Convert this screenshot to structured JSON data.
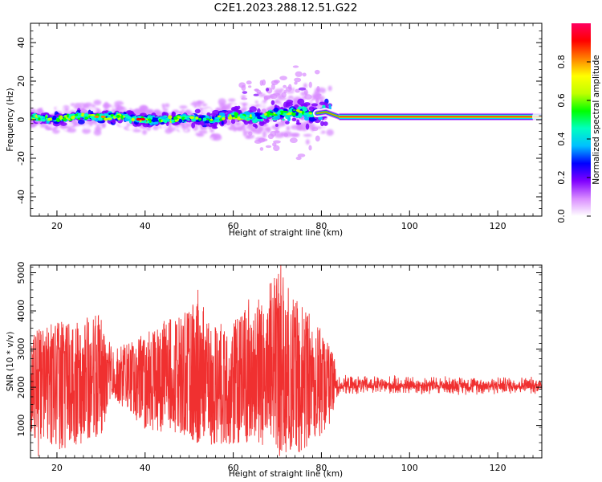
{
  "title": "C2E1.2023.288.12.51.G22",
  "chart_data": [
    {
      "type": "heatmap",
      "xlabel": "Height of straight line (km)",
      "ylabel": "Frequency (Hz)",
      "xlim": [
        14,
        130
      ],
      "ylim": [
        -50,
        50
      ],
      "xticks": [
        20,
        40,
        60,
        80,
        100,
        120
      ],
      "yticks": [
        -40,
        -20,
        0,
        20,
        40
      ],
      "grid": false,
      "colorbar": {
        "label": "Normalized spectral amplitude",
        "range": [
          0,
          1
        ],
        "ticks": [
          0.0,
          0.2,
          0.4,
          0.6,
          0.8
        ],
        "colormap": [
          "#ffffff",
          "#d98cff",
          "#8000ff",
          "#0000ff",
          "#00c0ff",
          "#00ffc0",
          "#00ff00",
          "#c0ff00",
          "#ffff00",
          "#ff8000",
          "#ff0000",
          "#ff0060"
        ]
      },
      "ridge": [
        {
          "x": 14,
          "freq": 1.5
        },
        {
          "x": 20,
          "freq": 0
        },
        {
          "x": 25,
          "freq": 2
        },
        {
          "x": 30,
          "freq": 1
        },
        {
          "x": 35,
          "freq": 2
        },
        {
          "x": 38,
          "freq": 0
        },
        {
          "x": 45,
          "freq": 0
        },
        {
          "x": 50,
          "freq": 1
        },
        {
          "x": 55,
          "freq": 0
        },
        {
          "x": 60,
          "freq": 2
        },
        {
          "x": 65,
          "freq": 1
        },
        {
          "x": 70,
          "freq": 3
        },
        {
          "x": 75,
          "freq": 4
        },
        {
          "x": 78,
          "freq": 3
        },
        {
          "x": 81,
          "freq": 4
        },
        {
          "x": 84,
          "freq": 1.5
        },
        {
          "x": 130,
          "freq": 1.5
        }
      ],
      "noisy_segment": {
        "x_start": 14,
        "x_end": 82,
        "spread_hz": [
          -16,
          25
        ]
      },
      "steady_segment": {
        "x_start": 84,
        "x_end": 130,
        "freq_hz": 1.5
      }
    },
    {
      "type": "line",
      "xlabel": "Height of straight line (km)",
      "ylabel": "SNR (10 * v/v)",
      "xlim": [
        14,
        130
      ],
      "ylim": [
        150,
        5200
      ],
      "xticks": [
        20,
        40,
        60,
        80,
        100,
        120
      ],
      "yticks": [
        1000,
        2000,
        3000,
        4000,
        5000
      ],
      "grid": false,
      "color": "#f03030",
      "envelope": [
        {
          "x": 14,
          "min": 700,
          "max": 3400
        },
        {
          "x": 20,
          "min": 300,
          "max": 3800
        },
        {
          "x": 25,
          "min": 500,
          "max": 3800
        },
        {
          "x": 30,
          "min": 700,
          "max": 3900
        },
        {
          "x": 33,
          "min": 1700,
          "max": 3000
        },
        {
          "x": 40,
          "min": 900,
          "max": 3400
        },
        {
          "x": 45,
          "min": 800,
          "max": 3800
        },
        {
          "x": 50,
          "min": 700,
          "max": 4000
        },
        {
          "x": 52,
          "min": 500,
          "max": 4500
        },
        {
          "x": 55,
          "min": 500,
          "max": 3600
        },
        {
          "x": 60,
          "min": 500,
          "max": 3800
        },
        {
          "x": 65,
          "min": 500,
          "max": 4300
        },
        {
          "x": 70,
          "min": 300,
          "max": 5100
        },
        {
          "x": 75,
          "min": 300,
          "max": 4300
        },
        {
          "x": 80,
          "min": 700,
          "max": 3500
        },
        {
          "x": 82,
          "min": 900,
          "max": 3100
        },
        {
          "x": 84,
          "min": 1800,
          "max": 2350
        },
        {
          "x": 100,
          "min": 1800,
          "max": 2350
        },
        {
          "x": 130,
          "min": 1800,
          "max": 2300
        }
      ],
      "level_after_80km": 2050,
      "level_before_80km": 2200,
      "notable_peaks": [
        {
          "x": 52,
          "y": 4550
        },
        {
          "x": 70.8,
          "y": 5200
        },
        {
          "x": 72.5,
          "y": 4600
        },
        {
          "x": 68.5,
          "y": 4100
        },
        {
          "x": 63.5,
          "y": 4300
        }
      ],
      "notable_dips": [
        {
          "x": 15.8,
          "y": 200
        },
        {
          "x": 70.5,
          "y": 200
        },
        {
          "x": 75,
          "y": 300
        }
      ]
    }
  ]
}
